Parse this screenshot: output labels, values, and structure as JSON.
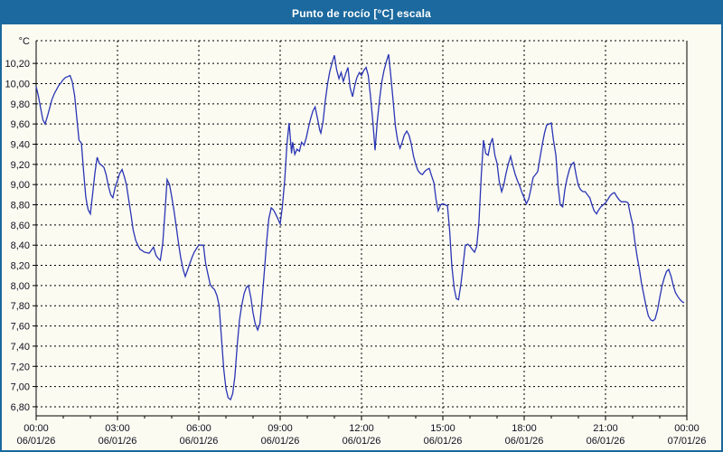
{
  "window": {
    "title": "Punto de rocío [°C] escala",
    "title_bar_color": "#1b699e",
    "border_color": "#1b699e",
    "background_color": "#fbfbf2"
  },
  "chart_data": {
    "type": "line",
    "title": "Punto de rocío [°C] escala",
    "unit_label": "°C",
    "line_color": "#2a35b4",
    "grid_color": "#000000",
    "text_color": "#10101e",
    "grid": true,
    "legend": "none",
    "ylim": [
      6.71,
      10.425
    ],
    "y_tick_values": [
      10.2,
      10.0,
      9.8,
      9.6,
      9.4,
      9.2,
      9.0,
      8.8,
      8.6,
      8.4,
      8.2,
      8.0,
      7.8,
      7.6,
      7.4,
      7.2,
      7.0,
      6.8
    ],
    "y_tick_labels": [
      "10,20",
      "10,00",
      "9,80",
      "9,60",
      "9,40",
      "9,20",
      "9,00",
      "8,80",
      "8,60",
      "8,40",
      "8,20",
      "8,00",
      "7,80",
      "7,60",
      "7,40",
      "7,20",
      "7,00",
      "6,80"
    ],
    "xlim_hours": [
      0,
      24
    ],
    "x_minor_step_hours": 1,
    "x_major_ticks": [
      {
        "hour": 0,
        "time": "00:00",
        "date": "06/01/26"
      },
      {
        "hour": 3,
        "time": "03:00",
        "date": "06/01/26"
      },
      {
        "hour": 6,
        "time": "06:00",
        "date": "06/01/26"
      },
      {
        "hour": 9,
        "time": "09:00",
        "date": "06/01/26"
      },
      {
        "hour": 12,
        "time": "12:00",
        "date": "06/01/26"
      },
      {
        "hour": 15,
        "time": "15:00",
        "date": "06/01/26"
      },
      {
        "hour": 18,
        "time": "18:00",
        "date": "06/01/26"
      },
      {
        "hour": 21,
        "time": "21:00",
        "date": "06/01/26"
      },
      {
        "hour": 24,
        "time": "00:00",
        "date": "07/01/26"
      }
    ],
    "series": [
      {
        "name": "Punto de rocío",
        "points": [
          [
            0.0,
            9.97
          ],
          [
            0.08,
            9.88
          ],
          [
            0.17,
            9.75
          ],
          [
            0.25,
            9.64
          ],
          [
            0.33,
            9.6
          ],
          [
            0.42,
            9.68
          ],
          [
            0.5,
            9.76
          ],
          [
            0.58,
            9.84
          ],
          [
            0.67,
            9.9
          ],
          [
            0.75,
            9.94
          ],
          [
            0.83,
            9.98
          ],
          [
            0.92,
            10.01
          ],
          [
            1.0,
            10.04
          ],
          [
            1.08,
            10.06
          ],
          [
            1.17,
            10.07
          ],
          [
            1.25,
            10.08
          ],
          [
            1.33,
            10.02
          ],
          [
            1.42,
            9.88
          ],
          [
            1.5,
            9.66
          ],
          [
            1.58,
            9.44
          ],
          [
            1.67,
            9.41
          ],
          [
            1.75,
            9.13
          ],
          [
            1.83,
            8.88
          ],
          [
            1.88,
            8.8
          ],
          [
            1.92,
            8.75
          ],
          [
            2.0,
            8.71
          ],
          [
            2.08,
            8.9
          ],
          [
            2.17,
            9.12
          ],
          [
            2.25,
            9.27
          ],
          [
            2.33,
            9.21
          ],
          [
            2.42,
            9.19
          ],
          [
            2.5,
            9.17
          ],
          [
            2.58,
            9.1
          ],
          [
            2.67,
            8.98
          ],
          [
            2.75,
            8.9
          ],
          [
            2.83,
            8.87
          ],
          [
            2.92,
            8.98
          ],
          [
            3.0,
            9.04
          ],
          [
            3.08,
            9.11
          ],
          [
            3.17,
            9.15
          ],
          [
            3.25,
            9.08
          ],
          [
            3.33,
            9.0
          ],
          [
            3.42,
            8.84
          ],
          [
            3.5,
            8.7
          ],
          [
            3.58,
            8.55
          ],
          [
            3.67,
            8.45
          ],
          [
            3.75,
            8.4
          ],
          [
            3.83,
            8.36
          ],
          [
            4.0,
            8.33
          ],
          [
            4.17,
            8.32
          ],
          [
            4.25,
            8.35
          ],
          [
            4.33,
            8.38
          ],
          [
            4.42,
            8.3
          ],
          [
            4.5,
            8.27
          ],
          [
            4.58,
            8.25
          ],
          [
            4.67,
            8.42
          ],
          [
            4.75,
            8.72
          ],
          [
            4.83,
            9.05
          ],
          [
            4.92,
            9.0
          ],
          [
            5.0,
            8.88
          ],
          [
            5.08,
            8.75
          ],
          [
            5.17,
            8.58
          ],
          [
            5.25,
            8.42
          ],
          [
            5.33,
            8.28
          ],
          [
            5.42,
            8.16
          ],
          [
            5.5,
            8.09
          ],
          [
            5.58,
            8.15
          ],
          [
            5.67,
            8.22
          ],
          [
            5.75,
            8.28
          ],
          [
            5.83,
            8.33
          ],
          [
            5.92,
            8.37
          ],
          [
            6.0,
            8.4
          ],
          [
            6.08,
            8.4
          ],
          [
            6.17,
            8.4
          ],
          [
            6.25,
            8.22
          ],
          [
            6.33,
            8.12
          ],
          [
            6.42,
            8.01
          ],
          [
            6.5,
            7.98
          ],
          [
            6.58,
            7.96
          ],
          [
            6.67,
            7.9
          ],
          [
            6.75,
            7.8
          ],
          [
            6.83,
            7.5
          ],
          [
            6.92,
            7.17
          ],
          [
            7.0,
            6.98
          ],
          [
            7.08,
            6.89
          ],
          [
            7.17,
            6.87
          ],
          [
            7.25,
            6.93
          ],
          [
            7.33,
            7.1
          ],
          [
            7.42,
            7.42
          ],
          [
            7.5,
            7.66
          ],
          [
            7.58,
            7.8
          ],
          [
            7.67,
            7.92
          ],
          [
            7.75,
            7.98
          ],
          [
            7.83,
            8.0
          ],
          [
            7.92,
            7.88
          ],
          [
            8.0,
            7.73
          ],
          [
            8.08,
            7.62
          ],
          [
            8.17,
            7.56
          ],
          [
            8.25,
            7.62
          ],
          [
            8.33,
            7.85
          ],
          [
            8.42,
            8.15
          ],
          [
            8.5,
            8.43
          ],
          [
            8.58,
            8.66
          ],
          [
            8.67,
            8.77
          ],
          [
            8.75,
            8.75
          ],
          [
            8.83,
            8.71
          ],
          [
            8.92,
            8.66
          ],
          [
            9.0,
            8.61
          ],
          [
            9.08,
            8.78
          ],
          [
            9.17,
            9.05
          ],
          [
            9.25,
            9.4
          ],
          [
            9.33,
            9.61
          ],
          [
            9.42,
            9.31
          ],
          [
            9.46,
            9.42
          ],
          [
            9.54,
            9.3
          ],
          [
            9.62,
            9.35
          ],
          [
            9.71,
            9.33
          ],
          [
            9.79,
            9.42
          ],
          [
            9.88,
            9.39
          ],
          [
            9.96,
            9.46
          ],
          [
            10.04,
            9.56
          ],
          [
            10.13,
            9.66
          ],
          [
            10.21,
            9.73
          ],
          [
            10.29,
            9.77
          ],
          [
            10.38,
            9.65
          ],
          [
            10.46,
            9.54
          ],
          [
            10.5,
            9.51
          ],
          [
            10.58,
            9.62
          ],
          [
            10.67,
            9.84
          ],
          [
            10.75,
            10.0
          ],
          [
            10.83,
            10.12
          ],
          [
            10.92,
            10.21
          ],
          [
            11.0,
            10.28
          ],
          [
            11.08,
            10.14
          ],
          [
            11.17,
            10.05
          ],
          [
            11.25,
            10.11
          ],
          [
            11.33,
            10.02
          ],
          [
            11.42,
            10.1
          ],
          [
            11.5,
            10.16
          ],
          [
            11.58,
            9.96
          ],
          [
            11.67,
            9.87
          ],
          [
            11.75,
            9.98
          ],
          [
            11.83,
            10.06
          ],
          [
            11.92,
            10.11
          ],
          [
            12.0,
            10.08
          ],
          [
            12.08,
            10.13
          ],
          [
            12.17,
            10.16
          ],
          [
            12.25,
            10.08
          ],
          [
            12.33,
            9.88
          ],
          [
            12.42,
            9.62
          ],
          [
            12.5,
            9.34
          ],
          [
            12.58,
            9.62
          ],
          [
            12.67,
            9.85
          ],
          [
            12.75,
            10.02
          ],
          [
            12.83,
            10.13
          ],
          [
            12.92,
            10.22
          ],
          [
            13.0,
            10.29
          ],
          [
            13.08,
            10.08
          ],
          [
            13.17,
            9.82
          ],
          [
            13.25,
            9.58
          ],
          [
            13.33,
            9.44
          ],
          [
            13.42,
            9.36
          ],
          [
            13.5,
            9.42
          ],
          [
            13.58,
            9.49
          ],
          [
            13.67,
            9.53
          ],
          [
            13.75,
            9.49
          ],
          [
            13.83,
            9.41
          ],
          [
            13.92,
            9.28
          ],
          [
            14.0,
            9.2
          ],
          [
            14.08,
            9.14
          ],
          [
            14.17,
            9.11
          ],
          [
            14.25,
            9.1
          ],
          [
            14.33,
            9.13
          ],
          [
            14.42,
            9.15
          ],
          [
            14.5,
            9.16
          ],
          [
            14.58,
            9.09
          ],
          [
            14.67,
            9.02
          ],
          [
            14.75,
            8.85
          ],
          [
            14.83,
            8.74
          ],
          [
            14.92,
            8.8
          ],
          [
            15.0,
            8.81
          ],
          [
            15.08,
            8.8
          ],
          [
            15.17,
            8.79
          ],
          [
            15.25,
            8.55
          ],
          [
            15.33,
            8.2
          ],
          [
            15.42,
            7.97
          ],
          [
            15.5,
            7.87
          ],
          [
            15.58,
            7.86
          ],
          [
            15.67,
            8.02
          ],
          [
            15.75,
            8.21
          ],
          [
            15.83,
            8.4
          ],
          [
            15.92,
            8.41
          ],
          [
            16.0,
            8.39
          ],
          [
            16.08,
            8.36
          ],
          [
            16.17,
            8.33
          ],
          [
            16.25,
            8.39
          ],
          [
            16.33,
            8.62
          ],
          [
            16.42,
            9.1
          ],
          [
            16.5,
            9.44
          ],
          [
            16.58,
            9.31
          ],
          [
            16.67,
            9.29
          ],
          [
            16.75,
            9.4
          ],
          [
            16.83,
            9.46
          ],
          [
            16.92,
            9.29
          ],
          [
            17.0,
            9.21
          ],
          [
            17.08,
            9.03
          ],
          [
            17.17,
            8.93
          ],
          [
            17.25,
            9.0
          ],
          [
            17.33,
            9.11
          ],
          [
            17.42,
            9.21
          ],
          [
            17.5,
            9.28
          ],
          [
            17.58,
            9.19
          ],
          [
            17.67,
            9.1
          ],
          [
            17.75,
            9.04
          ],
          [
            17.83,
            8.99
          ],
          [
            17.92,
            8.92
          ],
          [
            18.0,
            8.87
          ],
          [
            18.08,
            8.81
          ],
          [
            18.17,
            8.86
          ],
          [
            18.25,
            8.96
          ],
          [
            18.33,
            9.07
          ],
          [
            18.42,
            9.1
          ],
          [
            18.5,
            9.13
          ],
          [
            18.58,
            9.26
          ],
          [
            18.67,
            9.4
          ],
          [
            18.75,
            9.51
          ],
          [
            18.83,
            9.59
          ],
          [
            18.92,
            9.6
          ],
          [
            19.0,
            9.61
          ],
          [
            19.08,
            9.44
          ],
          [
            19.17,
            9.29
          ],
          [
            19.25,
            8.99
          ],
          [
            19.33,
            8.8
          ],
          [
            19.42,
            8.78
          ],
          [
            19.5,
            8.95
          ],
          [
            19.58,
            9.06
          ],
          [
            19.67,
            9.15
          ],
          [
            19.75,
            9.2
          ],
          [
            19.83,
            9.22
          ],
          [
            19.92,
            9.09
          ],
          [
            20.0,
            8.99
          ],
          [
            20.08,
            8.95
          ],
          [
            20.17,
            8.93
          ],
          [
            20.25,
            8.93
          ],
          [
            20.33,
            8.9
          ],
          [
            20.42,
            8.87
          ],
          [
            20.5,
            8.8
          ],
          [
            20.58,
            8.74
          ],
          [
            20.67,
            8.71
          ],
          [
            20.75,
            8.75
          ],
          [
            20.83,
            8.78
          ],
          [
            20.92,
            8.8
          ],
          [
            21.0,
            8.82
          ],
          [
            21.08,
            8.85
          ],
          [
            21.17,
            8.89
          ],
          [
            21.25,
            8.91
          ],
          [
            21.33,
            8.92
          ],
          [
            21.42,
            8.88
          ],
          [
            21.5,
            8.85
          ],
          [
            21.58,
            8.83
          ],
          [
            21.67,
            8.83
          ],
          [
            21.75,
            8.83
          ],
          [
            21.83,
            8.82
          ],
          [
            21.92,
            8.7
          ],
          [
            22.0,
            8.61
          ],
          [
            22.08,
            8.44
          ],
          [
            22.17,
            8.28
          ],
          [
            22.25,
            8.16
          ],
          [
            22.33,
            8.02
          ],
          [
            22.42,
            7.9
          ],
          [
            22.5,
            7.79
          ],
          [
            22.58,
            7.7
          ],
          [
            22.67,
            7.66
          ],
          [
            22.75,
            7.65
          ],
          [
            22.83,
            7.67
          ],
          [
            22.92,
            7.76
          ],
          [
            23.0,
            7.88
          ],
          [
            23.08,
            7.99
          ],
          [
            23.17,
            8.08
          ],
          [
            23.25,
            8.14
          ],
          [
            23.33,
            8.16
          ],
          [
            23.42,
            8.09
          ],
          [
            23.5,
            8.0
          ],
          [
            23.58,
            7.93
          ],
          [
            23.67,
            7.89
          ],
          [
            23.75,
            7.86
          ],
          [
            23.83,
            7.84
          ],
          [
            23.9,
            7.83
          ]
        ]
      }
    ]
  }
}
